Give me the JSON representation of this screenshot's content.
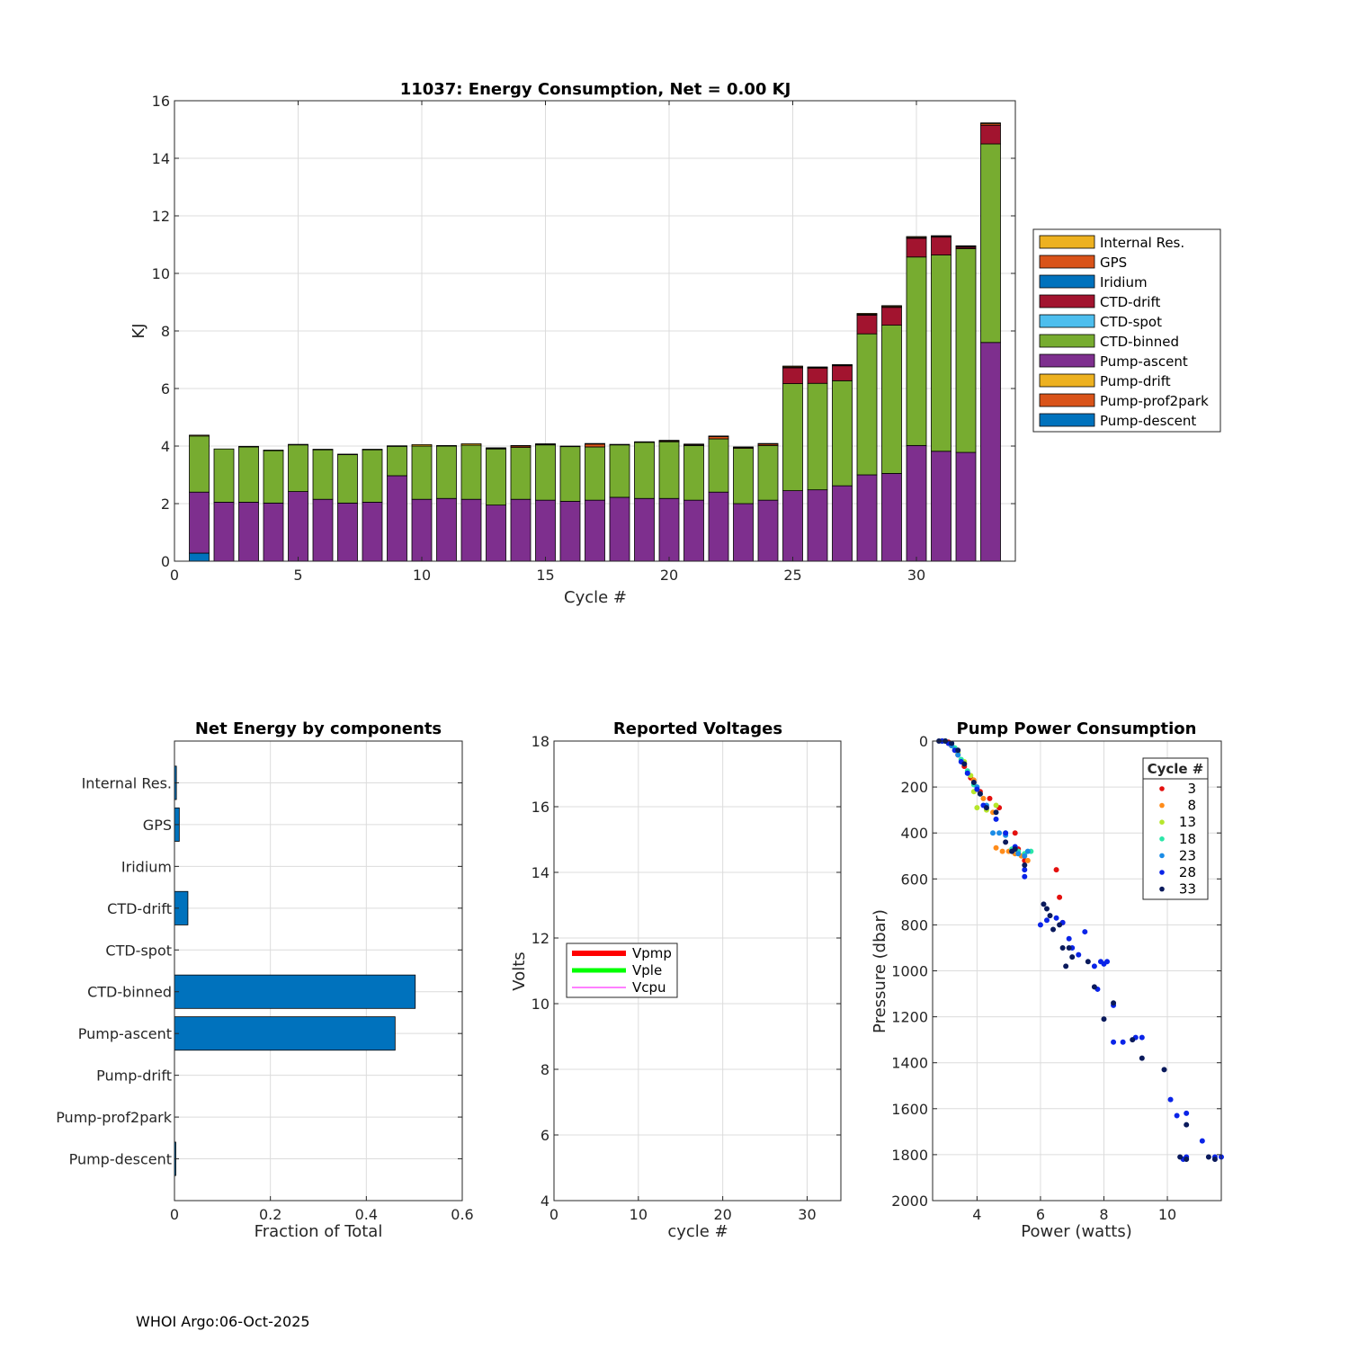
{
  "footer": "WHOI Argo:06-Oct-2025",
  "chart_data": [
    {
      "id": "energy",
      "type": "bar",
      "stacked": true,
      "title": "11037: Energy Consumption,  Net =   0.00 KJ",
      "xlabel": "Cycle #",
      "ylabel": "KJ",
      "xlim": [
        0,
        34
      ],
      "ylim": [
        0,
        16
      ],
      "xticks": [
        0,
        5,
        10,
        15,
        20,
        25,
        30
      ],
      "yticks": [
        0,
        2,
        4,
        6,
        8,
        10,
        12,
        14,
        16
      ],
      "grid": true,
      "legend_position": "right",
      "cycles": [
        1,
        2,
        3,
        4,
        5,
        6,
        7,
        8,
        9,
        10,
        11,
        12,
        13,
        14,
        15,
        16,
        17,
        18,
        19,
        20,
        21,
        22,
        23,
        24,
        25,
        26,
        27,
        28,
        29,
        30,
        31,
        32,
        33
      ],
      "series": [
        {
          "name": "Pump-descent",
          "color": "#0072BD",
          "values": [
            0.28,
            0,
            0,
            0,
            0,
            0,
            0,
            0,
            0,
            0,
            0,
            0,
            0,
            0,
            0,
            0,
            0,
            0,
            0,
            0,
            0,
            0,
            0,
            0,
            0,
            0,
            0,
            0,
            0,
            0,
            0,
            0,
            0
          ]
        },
        {
          "name": "Pump-prof2park",
          "color": "#D95319",
          "values": [
            0,
            0,
            0,
            0,
            0,
            0,
            0,
            0,
            0,
            0,
            0,
            0,
            0,
            0,
            0,
            0,
            0,
            0,
            0,
            0,
            0,
            0,
            0,
            0,
            0,
            0,
            0,
            0,
            0,
            0,
            0,
            0,
            0
          ]
        },
        {
          "name": "Pump-drift",
          "color": "#EDB120",
          "values": [
            0,
            0,
            0,
            0,
            0,
            0,
            0,
            0,
            0,
            0,
            0,
            0,
            0,
            0,
            0,
            0,
            0,
            0,
            0,
            0,
            0,
            0,
            0,
            0,
            0,
            0,
            0,
            0,
            0,
            0,
            0,
            0,
            0
          ]
        },
        {
          "name": "Pump-ascent",
          "color": "#7E2F8E",
          "values": [
            2.12,
            2.05,
            2.05,
            2.02,
            2.42,
            2.15,
            2.02,
            2.05,
            2.97,
            2.15,
            2.18,
            2.15,
            1.95,
            2.15,
            2.12,
            2.08,
            2.12,
            2.22,
            2.18,
            2.18,
            2.12,
            2.4,
            2.0,
            2.12,
            2.45,
            2.48,
            2.62,
            3.0,
            3.05,
            4.02,
            3.82,
            3.78,
            7.6
          ]
        },
        {
          "name": "CTD-binned",
          "color": "#77AC30",
          "values": [
            1.95,
            1.85,
            1.92,
            1.82,
            1.62,
            1.72,
            1.68,
            1.82,
            1.02,
            1.85,
            1.82,
            1.88,
            1.95,
            1.8,
            1.92,
            1.9,
            1.85,
            1.82,
            1.95,
            1.97,
            1.9,
            1.85,
            1.92,
            1.9,
            3.72,
            3.7,
            3.65,
            4.9,
            5.15,
            6.55,
            6.82,
            7.08,
            6.9
          ]
        },
        {
          "name": "CTD-spot",
          "color": "#4DBEEE",
          "values": [
            0,
            0,
            0,
            0,
            0,
            0,
            0,
            0,
            0,
            0,
            0,
            0,
            0,
            0,
            0,
            0,
            0,
            0,
            0,
            0,
            0,
            0,
            0,
            0,
            0,
            0,
            0,
            0,
            0,
            0,
            0,
            0,
            0
          ]
        },
        {
          "name": "CTD-drift",
          "color": "#A2142F",
          "values": [
            0,
            0,
            0,
            0,
            0,
            0,
            0,
            0,
            0,
            0,
            0,
            0,
            0,
            0,
            0,
            0,
            0,
            0,
            0,
            0,
            0,
            0,
            0,
            0,
            0.55,
            0.52,
            0.52,
            0.65,
            0.62,
            0.65,
            0.62,
            0.05,
            0.65
          ]
        },
        {
          "name": "Iridium",
          "color": "#0072BD",
          "values": [
            0,
            0,
            0,
            0,
            0,
            0,
            0,
            0,
            0,
            0,
            0,
            0,
            0,
            0,
            0,
            0,
            0,
            0,
            0,
            0,
            0,
            0,
            0,
            0,
            0,
            0,
            0,
            0,
            0,
            0,
            0,
            0,
            0
          ]
        },
        {
          "name": "GPS",
          "color": "#D95319",
          "values": [
            0,
            0,
            0,
            0,
            0,
            0,
            0,
            0,
            0,
            0,
            0,
            0,
            0.02,
            0.05,
            0.02,
            0,
            0.1,
            0,
            0,
            0.03,
            0.03,
            0.08,
            0.03,
            0.05,
            0.03,
            0.03,
            0.02,
            0.03,
            0.03,
            0.03,
            0.03,
            0.03,
            0.05
          ]
        },
        {
          "name": "Internal Res.",
          "color": "#EDB120",
          "values": [
            0.03,
            0,
            0.02,
            0.02,
            0.02,
            0.02,
            0.02,
            0.02,
            0.02,
            0.05,
            0.02,
            0.05,
            0.02,
            0.02,
            0.02,
            0.02,
            0.02,
            0.02,
            0.02,
            0.02,
            0.02,
            0.02,
            0.02,
            0.02,
            0.03,
            0.02,
            0.02,
            0.03,
            0.03,
            0.03,
            0.02,
            0.02,
            0.03
          ]
        }
      ]
    },
    {
      "id": "components",
      "type": "bar",
      "orientation": "horizontal",
      "title": "Net Energy by components",
      "xlabel": "Fraction of Total",
      "ylabel": "",
      "xlim": [
        0,
        0.6
      ],
      "xticks": [
        0,
        0.2,
        0.4,
        0.6
      ],
      "grid": true,
      "color": "#0072BD",
      "categories": [
        "Internal Res.",
        "GPS",
        "Iridium",
        "CTD-drift",
        "CTD-spot",
        "CTD-binned",
        "Pump-ascent",
        "Pump-drift",
        "Pump-prof2park",
        "Pump-descent"
      ],
      "values": [
        0.004,
        0.01,
        0,
        0.028,
        0,
        0.502,
        0.46,
        0,
        0,
        0.002
      ]
    },
    {
      "id": "voltages",
      "type": "line",
      "title": "Reported Voltages",
      "xlabel": "cycle #",
      "ylabel": "Volts",
      "xlim": [
        0,
        34
      ],
      "ylim": [
        4,
        18
      ],
      "xticks": [
        0,
        10,
        20,
        30
      ],
      "yticks": [
        4,
        6,
        8,
        10,
        12,
        14,
        16,
        18
      ],
      "grid": true,
      "legend_position": "left",
      "series": [
        {
          "name": "Vpmp",
          "color": "#FF0000",
          "width": 6,
          "values": []
        },
        {
          "name": "Vple",
          "color": "#00FF00",
          "width": 5,
          "values": []
        },
        {
          "name": "Vcpu",
          "color": "#FF00FF",
          "width": 1,
          "values": []
        }
      ]
    },
    {
      "id": "pump",
      "type": "scatter",
      "title": "Pump Power Consumption",
      "xlabel": "Power (watts)",
      "ylabel": "Pressure (dbar)",
      "xlim": [
        2.6,
        11.7
      ],
      "ylim": [
        0,
        2000
      ],
      "y_reversed": true,
      "xticks": [
        4,
        6,
        8,
        10
      ],
      "yticks": [
        0,
        200,
        400,
        600,
        800,
        1000,
        1200,
        1400,
        1600,
        1800,
        2000
      ],
      "grid": true,
      "legend_title": "Cycle #",
      "legend_position": "top-right",
      "series": [
        {
          "name": "3",
          "color": "#E4100E",
          "points": [
            [
              2.9,
              0
            ],
            [
              3.0,
              0
            ],
            [
              3.1,
              5
            ],
            [
              3.2,
              20
            ],
            [
              3.4,
              60
            ],
            [
              3.6,
              110
            ],
            [
              3.8,
              160
            ],
            [
              4.1,
              220
            ],
            [
              4.4,
              250
            ],
            [
              4.7,
              290
            ],
            [
              5.2,
              400
            ],
            [
              5.3,
              470
            ],
            [
              5.5,
              520
            ],
            [
              6.5,
              560
            ],
            [
              6.6,
              680
            ],
            [
              6.7,
              790
            ]
          ]
        },
        {
          "name": "8",
          "color": "#FF8C1A",
          "points": [
            [
              2.9,
              0
            ],
            [
              3.1,
              10
            ],
            [
              3.3,
              40
            ],
            [
              3.6,
              100
            ],
            [
              3.9,
              170
            ],
            [
              4.2,
              250
            ],
            [
              4.5,
              310
            ],
            [
              4.6,
              465
            ],
            [
              4.8,
              480
            ],
            [
              5.0,
              480
            ],
            [
              5.2,
              490
            ],
            [
              5.4,
              500
            ],
            [
              5.6,
              520
            ]
          ]
        },
        {
          "name": "13",
          "color": "#B6E62C",
          "points": [
            [
              3.0,
              0
            ],
            [
              3.2,
              15
            ],
            [
              3.4,
              50
            ],
            [
              3.6,
              90
            ],
            [
              3.8,
              150
            ],
            [
              3.9,
              220
            ],
            [
              4.0,
              290
            ],
            [
              4.3,
              300
            ],
            [
              4.6,
              280
            ]
          ]
        },
        {
          "name": "18",
          "color": "#2BE6A8",
          "points": [
            [
              3.0,
              0
            ],
            [
              3.3,
              30
            ],
            [
              3.5,
              80
            ],
            [
              3.7,
              130
            ],
            [
              3.9,
              190
            ],
            [
              4.1,
              230
            ],
            [
              4.9,
              400
            ],
            [
              5.1,
              470
            ],
            [
              5.3,
              480
            ],
            [
              5.5,
              490
            ],
            [
              5.7,
              480
            ]
          ]
        },
        {
          "name": "23",
          "color": "#1A8CE6",
          "points": [
            [
              2.9,
              0
            ],
            [
              3.2,
              20
            ],
            [
              3.4,
              60
            ],
            [
              3.7,
              140
            ],
            [
              4.0,
              200
            ],
            [
              4.3,
              280
            ],
            [
              4.5,
              400
            ],
            [
              4.7,
              400
            ],
            [
              4.9,
              410
            ],
            [
              5.1,
              480
            ],
            [
              5.3,
              490
            ],
            [
              5.5,
              500
            ],
            [
              5.6,
              480
            ]
          ]
        },
        {
          "name": "28",
          "color": "#0A24E8",
          "points": [
            [
              2.9,
              0
            ],
            [
              3.1,
              10
            ],
            [
              3.3,
              40
            ],
            [
              3.5,
              90
            ],
            [
              3.7,
              140
            ],
            [
              4.0,
              210
            ],
            [
              4.2,
              280
            ],
            [
              4.6,
              340
            ],
            [
              4.9,
              400
            ],
            [
              5.2,
              460
            ],
            [
              5.5,
              560
            ],
            [
              5.5,
              590
            ],
            [
              6.0,
              800
            ],
            [
              6.2,
              780
            ],
            [
              6.5,
              770
            ],
            [
              6.7,
              790
            ],
            [
              6.9,
              860
            ],
            [
              7.0,
              900
            ],
            [
              7.2,
              930
            ],
            [
              7.4,
              830
            ],
            [
              7.7,
              980
            ],
            [
              7.9,
              960
            ],
            [
              8.0,
              970
            ],
            [
              8.1,
              960
            ],
            [
              7.8,
              1080
            ],
            [
              8.3,
              1150
            ],
            [
              8.3,
              1310
            ],
            [
              8.6,
              1310
            ],
            [
              9.0,
              1290
            ],
            [
              9.2,
              1290
            ],
            [
              10.1,
              1560
            ],
            [
              10.3,
              1630
            ],
            [
              10.6,
              1620
            ],
            [
              10.5,
              1820
            ],
            [
              10.6,
              1810
            ],
            [
              11.1,
              1740
            ],
            [
              11.5,
              1810
            ],
            [
              11.7,
              1810
            ]
          ]
        },
        {
          "name": "33",
          "color": "#0A1A5C",
          "points": [
            [
              2.8,
              0
            ],
            [
              3.0,
              0
            ],
            [
              3.2,
              10
            ],
            [
              3.4,
              40
            ],
            [
              3.6,
              100
            ],
            [
              3.9,
              180
            ],
            [
              4.1,
              230
            ],
            [
              4.3,
              290
            ],
            [
              4.6,
              310
            ],
            [
              4.9,
              440
            ],
            [
              5.1,
              480
            ],
            [
              5.2,
              470
            ],
            [
              5.5,
              540
            ],
            [
              6.1,
              710
            ],
            [
              6.2,
              730
            ],
            [
              6.3,
              760
            ],
            [
              6.4,
              820
            ],
            [
              6.6,
              800
            ],
            [
              6.7,
              900
            ],
            [
              6.8,
              980
            ],
            [
              6.9,
              900
            ],
            [
              7.0,
              940
            ],
            [
              7.5,
              960
            ],
            [
              7.7,
              1070
            ],
            [
              8.0,
              1210
            ],
            [
              8.3,
              1140
            ],
            [
              8.9,
              1300
            ],
            [
              9.2,
              1380
            ],
            [
              9.9,
              1430
            ],
            [
              10.6,
              1670
            ],
            [
              10.4,
              1810
            ],
            [
              10.6,
              1820
            ],
            [
              11.3,
              1810
            ],
            [
              11.5,
              1820
            ]
          ]
        }
      ]
    }
  ]
}
